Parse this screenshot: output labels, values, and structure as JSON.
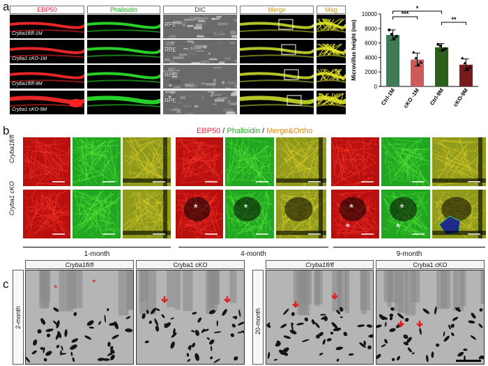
{
  "panel_a": {
    "letter": "a",
    "columns": [
      {
        "label": "EBP50",
        "color": "#e8243c"
      },
      {
        "label": "Phalloidin",
        "color": "#1bb31b"
      },
      {
        "label": "DIC",
        "color": "#333333"
      },
      {
        "label": "Merge",
        "color": "#d99a10"
      },
      {
        "label": "Mag",
        "color": "#d99a10"
      }
    ],
    "rows": [
      "Cryba1fl/fl-1M",
      "Cryba1 cKO-1M",
      "Cryba1fl/fl-9M",
      "Cryba1 cKO-9M"
    ],
    "rpe_label": "RPE"
  },
  "chart_data": {
    "type": "bar",
    "ylabel": "Microvillus height (nm)",
    "categories": [
      "Ctrl-1M",
      "cKO -1M",
      "Ctrl-9M",
      "cKO-9M"
    ],
    "values": [
      7100,
      3700,
      5400,
      3000
    ],
    "errors": [
      700,
      900,
      500,
      800
    ],
    "colors": [
      "#3e7a55",
      "#cf5a5a",
      "#2e5e1c",
      "#7a1b1b"
    ],
    "points": [
      [
        7800,
        7200,
        6600,
        6900
      ],
      [
        4700,
        3900,
        3000,
        3300
      ],
      [
        5800,
        5600,
        5000,
        5200
      ],
      [
        3900,
        3200,
        2400,
        2600
      ]
    ],
    "ylim": [
      0,
      10000
    ],
    "yticks": [
      "0",
      "2000",
      "4000",
      "6000",
      "8000",
      "10000"
    ],
    "significance": [
      {
        "from": 0,
        "to": 1,
        "label": "***"
      },
      {
        "from": 0,
        "to": 2,
        "label": "*"
      },
      {
        "from": 2,
        "to": 3,
        "label": "**"
      }
    ]
  },
  "panel_b": {
    "letter": "b",
    "title_parts": [
      {
        "text": "EBP50",
        "color": "#e8243c"
      },
      {
        "text": " / ",
        "color": "#111111"
      },
      {
        "text": "Phalloidin",
        "color": "#1bb31b"
      },
      {
        "text": " / ",
        "color": "#111111"
      },
      {
        "text": "Merge&Ortho",
        "color": "#e08a10"
      }
    ],
    "row_labels": [
      "Cryba1fl/fl",
      "Cryba1 cKO"
    ],
    "timepoints": [
      "1-month",
      "4-month",
      "9-month"
    ]
  },
  "panel_c": {
    "letter": "c",
    "left_side": "2-month",
    "right_side": "20-month",
    "headers": [
      "Cryba1fl/fl",
      "Cryba1 cKO",
      "Cryba1fl/fl",
      "Cryba1 cKO"
    ]
  }
}
